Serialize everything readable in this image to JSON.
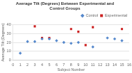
{
  "chart_data": {
    "type": "scatter",
    "title": "Average Tilt (Degrees) Between Experimental and\nControl Groups",
    "xlabel": "Subject Number",
    "ylabel": "Average Tilt (Degrees)",
    "xlim": [
      0,
      16
    ],
    "ylim": [
      0,
      40
    ],
    "xticks": [
      0,
      1,
      2,
      3,
      4,
      5,
      6,
      7,
      8,
      9,
      10,
      11,
      12,
      13,
      14,
      15,
      16
    ],
    "yticks": [
      0,
      10,
      20,
      30,
      40
    ],
    "grid": "y",
    "legend": "top right",
    "series": [
      {
        "name": "Control",
        "color": "#5588CC",
        "marker": "diamond",
        "x": [
          1,
          2,
          3,
          4,
          5,
          6,
          7,
          8,
          9,
          11,
          13,
          14,
          15
        ],
        "values": [
          8,
          21,
          21,
          24,
          24,
          22,
          20,
          19,
          20,
          15,
          25,
          24,
          22
        ]
      },
      {
        "name": "Experimental",
        "color": "#CC2222",
        "marker": "square",
        "x": [
          3,
          4,
          5,
          8,
          9,
          10,
          11,
          15
        ],
        "values": [
          38,
          25,
          25,
          35,
          32,
          17,
          37,
          35
        ]
      }
    ]
  }
}
